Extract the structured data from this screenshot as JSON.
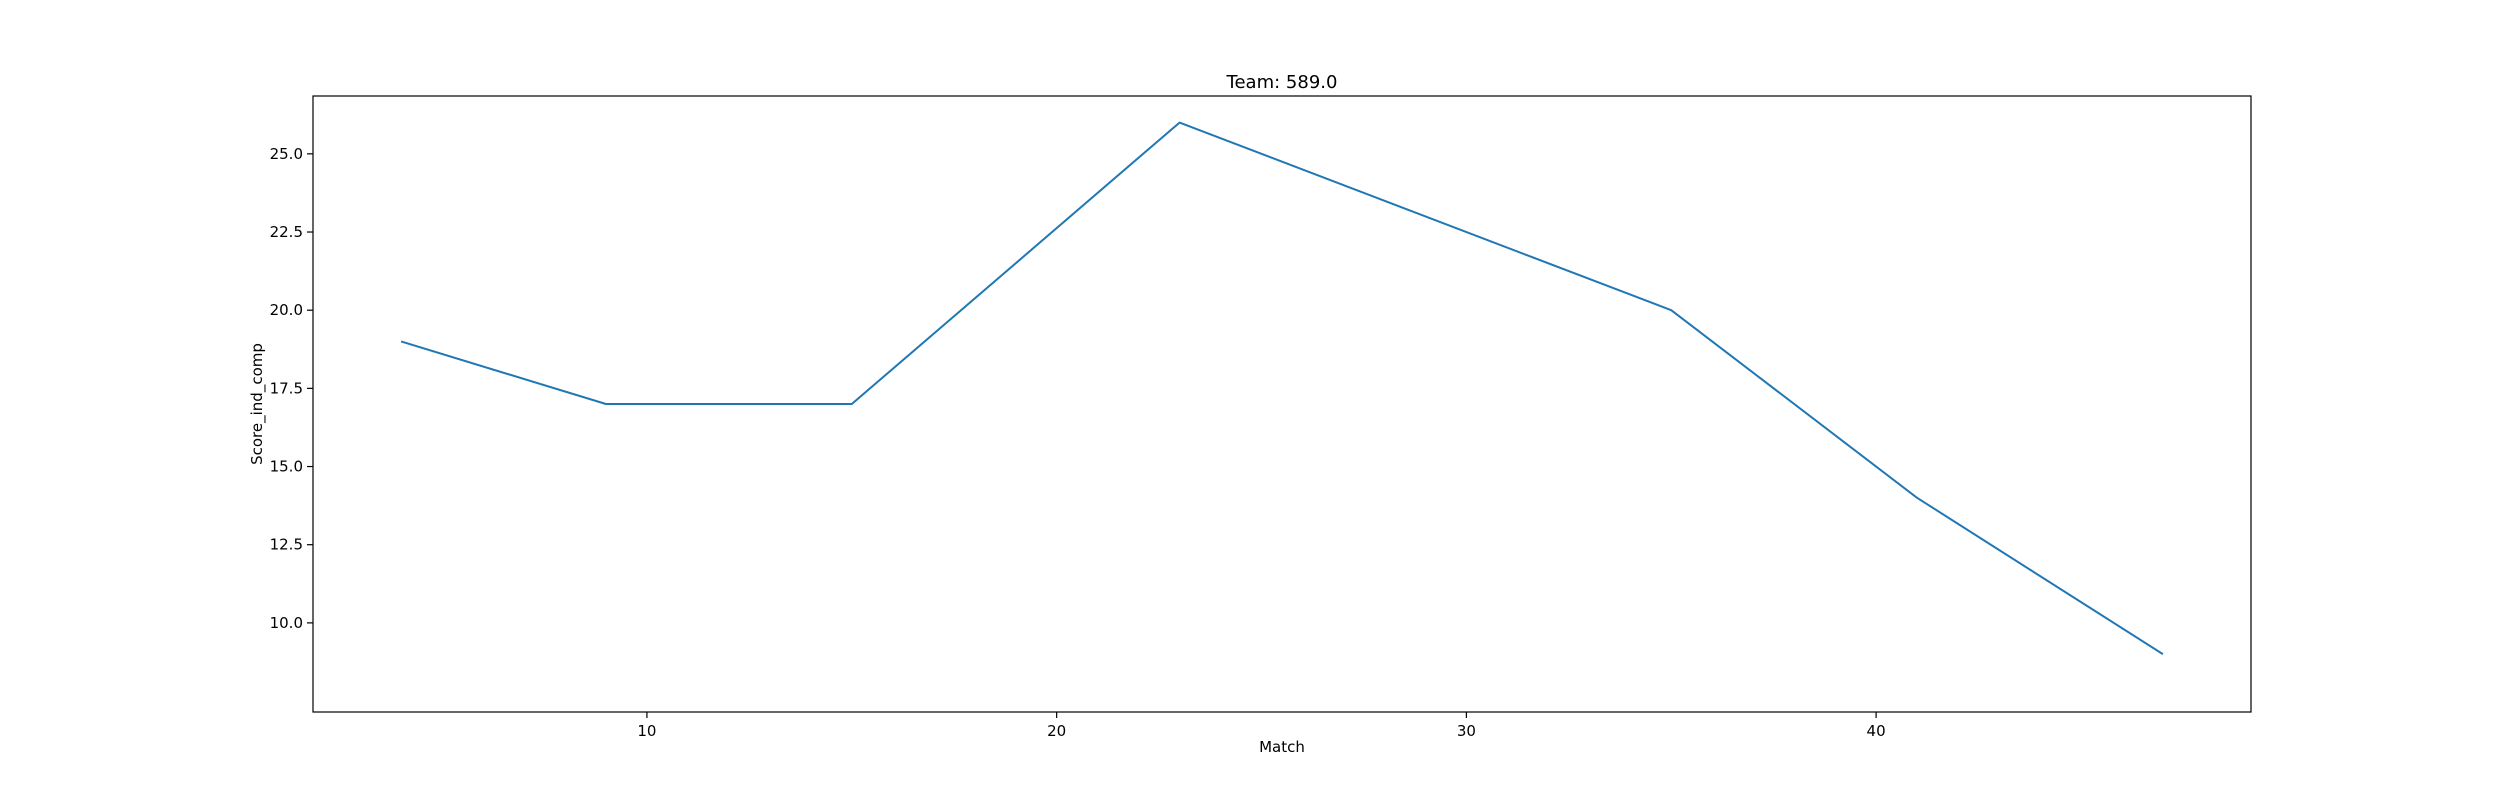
{
  "chart_data": {
    "type": "line",
    "title": "Team: 589.0",
    "xlabel": "Match",
    "ylabel": "Score_ind_comp",
    "x": [
      4,
      9,
      15,
      23,
      35,
      41,
      47
    ],
    "series": [
      {
        "values": [
          19,
          17,
          17,
          26,
          20,
          14,
          9
        ],
        "color": "#1f77b4"
      }
    ],
    "xlim": [
      1.85,
      49.15
    ],
    "ylim": [
      7.15,
      26.85
    ],
    "xticks": [
      10,
      20,
      30,
      40
    ],
    "xtick_labels": [
      "10",
      "20",
      "30",
      "40"
    ],
    "yticks": [
      10.0,
      12.5,
      15.0,
      17.5,
      20.0,
      22.5,
      25.0
    ],
    "ytick_labels": [
      "10.0",
      "12.5",
      "15.0",
      "17.5",
      "20.0",
      "22.5",
      "25.0"
    ],
    "grid": false,
    "legend": "none"
  }
}
